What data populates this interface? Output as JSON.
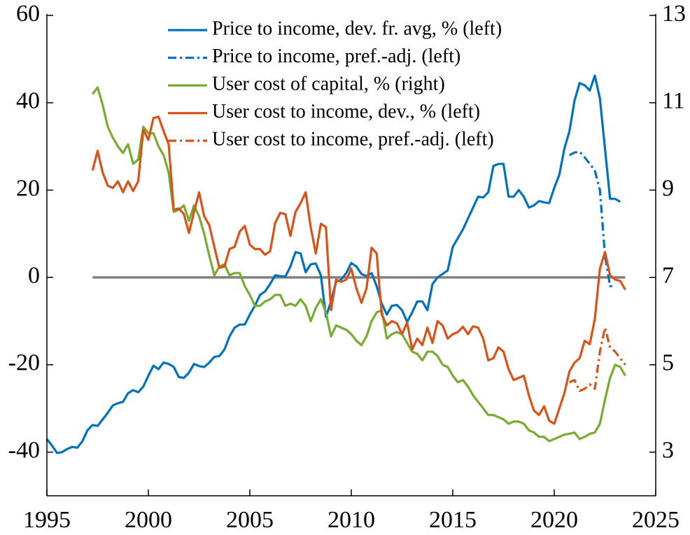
{
  "chart_data": {
    "type": "line",
    "xlim": [
      1995,
      2025
    ],
    "xticks": [
      1995,
      2000,
      2005,
      2010,
      2015,
      2020,
      2025
    ],
    "ylim": [
      -50,
      60
    ],
    "yticks": [
      -40,
      -20,
      0,
      20,
      40,
      60
    ],
    "y2lim": [
      2,
      13
    ],
    "y2ticks": [
      3,
      5,
      7,
      9,
      11,
      13
    ],
    "legend": "upper center",
    "reference_line": {
      "value": 0,
      "color": "#808080"
    },
    "series": [
      {
        "name": "Price to income, dev. fr. avg, % (left)",
        "color": "#0072BD",
        "dash": false,
        "axis": "y",
        "x": [
          1995,
          1995.25,
          1995.5,
          1995.75,
          1996,
          1996.25,
          1996.5,
          1996.75,
          1997,
          1997.25,
          1997.5,
          1997.75,
          1998,
          1998.25,
          1998.5,
          1998.75,
          1999,
          1999.25,
          1999.5,
          1999.75,
          2000,
          2000.25,
          2000.5,
          2000.75,
          2001,
          2001.25,
          2001.5,
          2001.75,
          2002,
          2002.25,
          2002.5,
          2002.75,
          2003,
          2003.25,
          2003.5,
          2003.75,
          2004,
          2004.25,
          2004.5,
          2004.75,
          2005,
          2005.25,
          2005.5,
          2005.75,
          2006,
          2006.25,
          2006.5,
          2006.75,
          2007,
          2007.25,
          2007.5,
          2007.75,
          2008,
          2008.25,
          2008.5,
          2008.75,
          2009,
          2009.25,
          2009.5,
          2009.75,
          2010,
          2010.25,
          2010.5,
          2010.75,
          2011,
          2011.25,
          2011.5,
          2011.75,
          2012,
          2012.25,
          2012.5,
          2012.75,
          2013,
          2013.25,
          2013.5,
          2013.75,
          2014,
          2014.25,
          2014.5,
          2014.75,
          2015,
          2015.25,
          2015.5,
          2015.75,
          2016,
          2016.25,
          2016.5,
          2016.75,
          2017,
          2017.25,
          2017.5,
          2017.75,
          2018,
          2018.25,
          2018.5,
          2018.75,
          2019,
          2019.25,
          2019.5,
          2019.75,
          2020,
          2020.25,
          2020.5,
          2020.75,
          2021,
          2021.25,
          2021.5,
          2021.75,
          2022,
          2022.25,
          2022.5,
          2022.75,
          2023,
          2023.25
        ],
        "values": [
          -37,
          -38.5,
          -40.2,
          -40,
          -39.3,
          -38.8,
          -39,
          -37.5,
          -35,
          -33.8,
          -34,
          -32.5,
          -31,
          -29.3,
          -28.8,
          -28.5,
          -26.5,
          -25.8,
          -26.3,
          -25,
          -22.5,
          -20.2,
          -21,
          -19.5,
          -19.8,
          -20.5,
          -22.8,
          -23,
          -21.8,
          -19.8,
          -20.3,
          -20.5,
          -19.5,
          -18.2,
          -18,
          -16.5,
          -13.5,
          -11.5,
          -10.8,
          -10.8,
          -8.5,
          -6.5,
          -4,
          -3.2,
          -1.5,
          0.5,
          0.3,
          0.2,
          2.5,
          5.8,
          5.5,
          1.2,
          3,
          3.2,
          0.5,
          -9,
          -5.5,
          -1,
          -0.5,
          1,
          3.3,
          2.5,
          0.8,
          0.3,
          1,
          -2,
          -6,
          -8.5,
          -6.5,
          -6.3,
          -7.5,
          -10.2,
          -8,
          -5.5,
          -5.5,
          -7.5,
          -1.5,
          0,
          0.8,
          1.6,
          7,
          9,
          11,
          13.5,
          16,
          18.5,
          18.3,
          19.5,
          25.5,
          26,
          26,
          18.5,
          18.5,
          20,
          18.5,
          16,
          16.5,
          17.5,
          17.2,
          17,
          20.5,
          23.5,
          29.5,
          33.5,
          40.5,
          44.5,
          44,
          42.8,
          46.2,
          41,
          29.5,
          18,
          18,
          17.3
        ]
      },
      {
        "name": "Price to income, pref.-adj. (left)",
        "color": "#0072BD",
        "dash": true,
        "axis": "y",
        "x": [
          2020.75,
          2021,
          2021.25,
          2021.5,
          2021.75,
          2022,
          2022.25,
          2022.5,
          2022.75,
          2023
        ],
        "values": [
          28,
          28.6,
          28.8,
          27.5,
          26,
          24.5,
          20,
          5,
          -2,
          -2
        ]
      },
      {
        "name": "User cost of capital, % (right)",
        "color": "#77AC30",
        "dash": false,
        "axis": "y2",
        "x": [
          1997.25,
          1997.5,
          1997.75,
          1998,
          1998.25,
          1998.5,
          1998.75,
          1999,
          1999.25,
          1999.5,
          1999.75,
          2000,
          2000.25,
          2000.5,
          2000.75,
          2001,
          2001.25,
          2001.5,
          2001.75,
          2002,
          2002.25,
          2002.5,
          2002.75,
          2003,
          2003.25,
          2003.5,
          2003.75,
          2004,
          2004.25,
          2004.5,
          2004.75,
          2005,
          2005.25,
          2005.5,
          2005.75,
          2006,
          2006.25,
          2006.5,
          2006.75,
          2007,
          2007.25,
          2007.5,
          2007.75,
          2008,
          2008.25,
          2008.5,
          2008.75,
          2009,
          2009.25,
          2009.5,
          2009.75,
          2010,
          2010.25,
          2010.5,
          2010.75,
          2011,
          2011.25,
          2011.5,
          2011.75,
          2012,
          2012.25,
          2012.5,
          2012.75,
          2013,
          2013.25,
          2013.5,
          2013.75,
          2014,
          2014.25,
          2014.5,
          2014.75,
          2015,
          2015.25,
          2015.5,
          2015.75,
          2016,
          2016.25,
          2016.5,
          2016.75,
          2017,
          2017.25,
          2017.5,
          2017.75,
          2018,
          2018.25,
          2018.5,
          2018.75,
          2019,
          2019.25,
          2019.5,
          2019.75,
          2020,
          2020.25,
          2020.5,
          2020.75,
          2021,
          2021.25,
          2021.5,
          2021.75,
          2022,
          2022.25,
          2022.5,
          2022.75,
          2023,
          2023.25,
          2023.5
        ],
        "values": [
          11.2,
          11.35,
          10.95,
          10.45,
          10.2,
          10,
          9.85,
          10.05,
          9.6,
          9.7,
          10.45,
          10.3,
          10.3,
          10,
          9.8,
          9.4,
          8.5,
          8.55,
          8.65,
          8.3,
          8.65,
          8.4,
          8,
          7.5,
          7.05,
          7.25,
          7.3,
          7.05,
          7.1,
          7.1,
          6.8,
          6.6,
          6.35,
          6.35,
          6.45,
          6.5,
          6.6,
          6.6,
          6.35,
          6.4,
          6.35,
          6.5,
          6.35,
          6,
          6.3,
          6.5,
          6.2,
          5.65,
          5.9,
          5.85,
          5.8,
          5.7,
          5.55,
          5.45,
          5.65,
          6,
          6.2,
          6.25,
          5.6,
          5.7,
          5.75,
          5.7,
          5.5,
          5.3,
          5.25,
          5.1,
          5.3,
          5.3,
          5.2,
          5,
          4.95,
          4.75,
          4.6,
          4.65,
          4.5,
          4.3,
          4.15,
          4,
          3.85,
          3.85,
          3.8,
          3.75,
          3.65,
          3.7,
          3.7,
          3.65,
          3.5,
          3.45,
          3.35,
          3.35,
          3.25,
          3.3,
          3.35,
          3.4,
          3.42,
          3.45,
          3.3,
          3.35,
          3.42,
          3.45,
          3.65,
          4.2,
          4.7,
          5,
          4.95,
          4.75
        ]
      },
      {
        "name": "User cost to income, dev., % (left)",
        "color": "#D95319",
        "dash": false,
        "axis": "y",
        "x": [
          1997.25,
          1997.5,
          1997.75,
          1998,
          1998.25,
          1998.5,
          1998.75,
          1999,
          1999.25,
          1999.5,
          1999.75,
          2000,
          2000.25,
          2000.5,
          2000.75,
          2001,
          2001.25,
          2001.5,
          2001.75,
          2002,
          2002.25,
          2002.5,
          2002.75,
          2003,
          2003.25,
          2003.5,
          2003.75,
          2004,
          2004.25,
          2004.5,
          2004.75,
          2005,
          2005.25,
          2005.5,
          2005.75,
          2006,
          2006.25,
          2006.5,
          2006.75,
          2007,
          2007.25,
          2007.5,
          2007.75,
          2008,
          2008.25,
          2008.5,
          2008.75,
          2009,
          2009.25,
          2009.5,
          2009.75,
          2010,
          2010.25,
          2010.5,
          2010.75,
          2011,
          2011.25,
          2011.5,
          2011.75,
          2012,
          2012.25,
          2012.5,
          2012.75,
          2013,
          2013.25,
          2013.5,
          2013.75,
          2014,
          2014.25,
          2014.5,
          2014.75,
          2015,
          2015.25,
          2015.5,
          2015.75,
          2016,
          2016.25,
          2016.5,
          2016.75,
          2017,
          2017.25,
          2017.5,
          2017.75,
          2018,
          2018.25,
          2018.5,
          2018.75,
          2019,
          2019.25,
          2019.5,
          2019.75,
          2020,
          2020.25,
          2020.5,
          2020.75,
          2021,
          2021.25,
          2021.5,
          2021.75,
          2022,
          2022.25,
          2022.5,
          2022.75,
          2023,
          2023.25,
          2023.5
        ],
        "values": [
          24.5,
          29,
          24,
          21,
          20.5,
          22,
          19.5,
          22,
          19.8,
          22,
          33.8,
          31.5,
          36.5,
          36.8,
          33.5,
          30.5,
          15.5,
          15.8,
          14.5,
          10.2,
          15,
          19.5,
          14,
          12,
          7,
          2.2,
          2.5,
          6.5,
          7,
          10.5,
          11.8,
          7.5,
          6.5,
          6.5,
          5.2,
          6,
          12.5,
          14.8,
          14.5,
          9.5,
          15,
          17,
          19.5,
          11.5,
          5.5,
          12.3,
          11.5,
          -7.5,
          -0.5,
          -1,
          -0.5,
          2,
          -2.5,
          -5.8,
          -2.5,
          6.8,
          5.5,
          -8.5,
          -11,
          -10,
          -10.5,
          -13,
          -10.3,
          -16.5,
          -14,
          -15.5,
          -11.5,
          -15,
          -10,
          -11,
          -14,
          -13,
          -12.5,
          -11.3,
          -13,
          -11.2,
          -11.5,
          -14,
          -19,
          -18.5,
          -16,
          -17,
          -21,
          -23.5,
          -23,
          -22.5,
          -27,
          -30.5,
          -31.5,
          -29.5,
          -32.8,
          -33.5,
          -30,
          -26.5,
          -21.5,
          -19.5,
          -18.5,
          -14.5,
          -15.3,
          -9.5,
          2,
          5.8,
          0.5,
          -0.5,
          -0.8,
          -2.8
        ]
      },
      {
        "name": "User cost to income, pref.-adj. (left)",
        "color": "#D95319",
        "dash": true,
        "axis": "y",
        "x": [
          2020.75,
          2021,
          2021.25,
          2021.5,
          2021.75,
          2022,
          2022.25,
          2022.5,
          2022.75,
          2023,
          2023.25,
          2023.5
        ],
        "values": [
          -24,
          -23.5,
          -26,
          -25.5,
          -24.5,
          -25.5,
          -17,
          -11.5,
          -16,
          -17,
          -18.5,
          -20
        ]
      }
    ]
  }
}
